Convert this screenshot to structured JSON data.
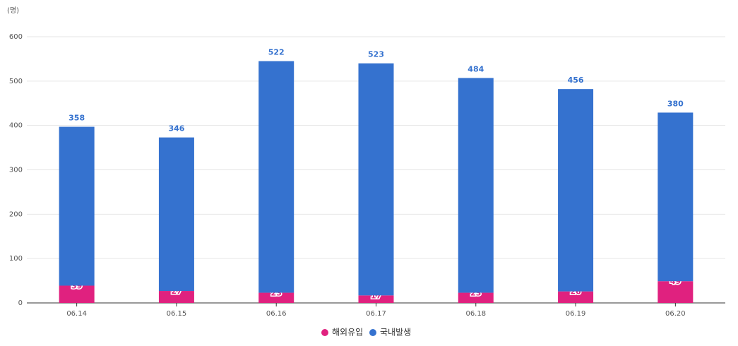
{
  "chart_data": {
    "type": "stacked-bar",
    "y_unit": "(명)",
    "categories": [
      "06.14",
      "06.15",
      "06.16",
      "06.17",
      "06.18",
      "06.19",
      "06.20"
    ],
    "series": [
      {
        "name": "해외유입",
        "color": "#e0217f",
        "values": [
          39,
          27,
          23,
          17,
          23,
          26,
          49
        ]
      },
      {
        "name": "국내발생",
        "color": "#3572cf",
        "values": [
          358,
          346,
          522,
          523,
          484,
          456,
          380
        ]
      }
    ],
    "ylim": [
      0,
      600
    ],
    "yticks": [
      0,
      100,
      200,
      300,
      400,
      500,
      600
    ],
    "grid": true,
    "legend": "bottom"
  }
}
